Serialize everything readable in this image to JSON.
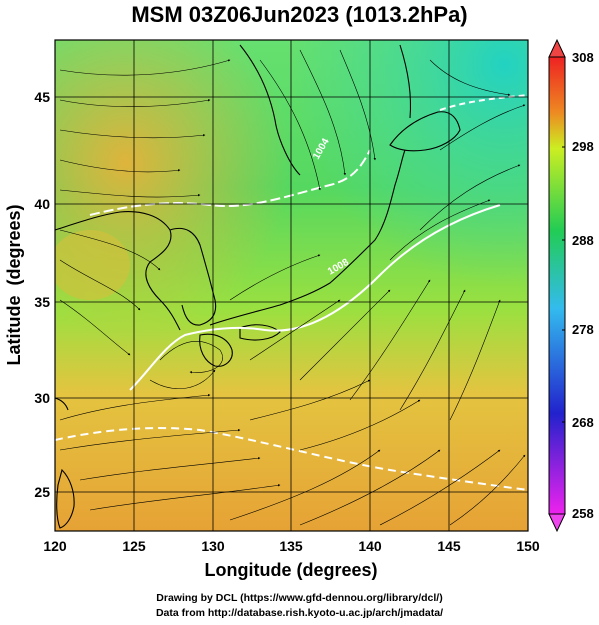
{
  "title": "MSM 03Z06Jun2023 (1013.2hPa)",
  "credits": {
    "line1": "Drawing by DCL (https://www.gfd-dennou.org/library/dcl/)",
    "line2": "Data from http://database.rish.kyoto-u.ac.jp/arch/jmadata/"
  },
  "chart_data": {
    "type": "heatmap",
    "title": "MSM 03Z06Jun2023 (1013.2hPa)",
    "xlabel": "Longitude (degrees)",
    "ylabel": "Latitude  (degrees)",
    "xlim": [
      120,
      150
    ],
    "ylim": [
      22.4,
      47.6
    ],
    "x_ticks": [
      120,
      125,
      130,
      135,
      140,
      145,
      150
    ],
    "y_ticks": [
      25,
      30,
      35,
      40,
      45
    ],
    "grid": true,
    "colorbar": {
      "ticks": [
        308,
        298,
        288,
        278,
        268,
        258
      ],
      "range": [
        258,
        308
      ],
      "colors": [
        "#ee22ee",
        "#2222cc",
        "#33bbee",
        "#22cc55",
        "#ccee22",
        "#ee8822",
        "#ee2222"
      ]
    },
    "contour_labels": [
      "1004",
      "1008"
    ],
    "overlays": [
      "temperature shading",
      "streamlines",
      "isobars",
      "coastlines"
    ]
  }
}
